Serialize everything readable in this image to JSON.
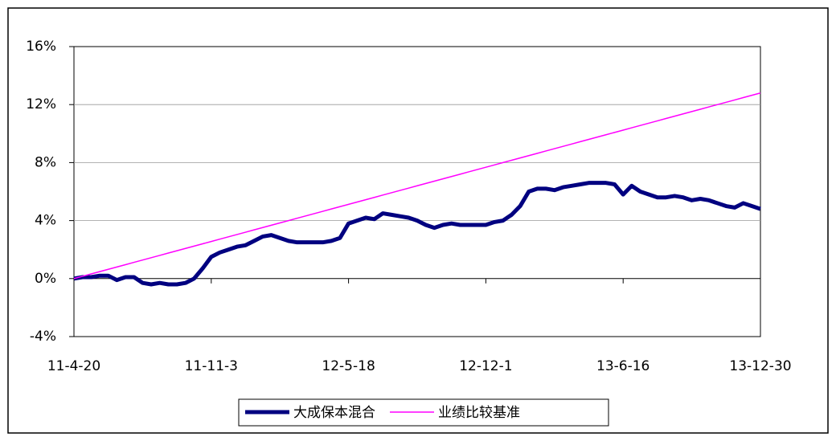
{
  "chart_data": {
    "type": "line",
    "categories": [
      "11-4-20",
      null,
      null,
      null,
      null,
      null,
      null,
      null,
      null,
      null,
      null,
      null,
      null,
      null,
      null,
      null,
      "11-11-3",
      null,
      null,
      null,
      null,
      null,
      null,
      null,
      null,
      null,
      null,
      null,
      null,
      null,
      null,
      null,
      "12-5-18",
      null,
      null,
      null,
      null,
      null,
      null,
      null,
      null,
      null,
      null,
      null,
      null,
      null,
      null,
      null,
      "12-12-1",
      null,
      null,
      null,
      null,
      null,
      null,
      null,
      null,
      null,
      null,
      null,
      null,
      null,
      null,
      null,
      "13-6-16",
      null,
      null,
      null,
      null,
      null,
      null,
      null,
      null,
      null,
      null,
      null,
      null,
      null,
      null,
      null,
      "13-12-30"
    ],
    "series": [
      {
        "name": "大成保本混合",
        "color": "#000080",
        "values": [
          0,
          0.1,
          0.1,
          0.2,
          0.2,
          -0.1,
          0.1,
          0.1,
          -0.3,
          -0.4,
          -0.3,
          -0.4,
          -0.4,
          -0.3,
          0.0,
          0.7,
          1.5,
          1.8,
          2.0,
          2.2,
          2.3,
          2.6,
          2.9,
          3.0,
          2.8,
          2.6,
          2.5,
          2.5,
          2.5,
          2.5,
          2.6,
          2.8,
          3.8,
          4.0,
          4.2,
          4.1,
          4.5,
          4.4,
          4.3,
          4.2,
          4.0,
          3.7,
          3.5,
          3.7,
          3.8,
          3.7,
          3.7,
          3.7,
          3.7,
          3.9,
          4.0,
          4.4,
          5.0,
          6.0,
          6.2,
          6.2,
          6.1,
          6.3,
          6.4,
          6.5,
          6.6,
          6.6,
          6.6,
          6.5,
          5.8,
          6.4,
          6.0,
          5.8,
          5.6,
          5.6,
          5.7,
          5.6,
          5.4,
          5.5,
          5.4,
          5.2,
          5.0,
          4.9,
          5.2,
          5.0,
          4.8
        ]
      },
      {
        "name": "业绩比较基准",
        "color": "#ff00ff",
        "values": [
          0,
          0.16,
          0.32,
          0.48,
          0.64,
          0.8,
          0.96,
          1.12,
          1.28,
          1.44,
          1.6,
          1.76,
          1.92,
          2.08,
          2.24,
          2.4,
          2.56,
          2.72,
          2.88,
          3.04,
          3.2,
          3.36,
          3.52,
          3.68,
          3.84,
          4.0,
          4.16,
          4.32,
          4.48,
          4.64,
          4.8,
          4.96,
          5.12,
          5.28,
          5.44,
          5.6,
          5.76,
          5.92,
          6.08,
          6.24,
          6.4,
          6.56,
          6.72,
          6.88,
          7.04,
          7.2,
          7.36,
          7.52,
          7.68,
          7.84,
          8.0,
          8.16,
          8.32,
          8.48,
          8.64,
          8.8,
          8.96,
          9.12,
          9.28,
          9.44,
          9.6,
          9.76,
          9.92,
          10.08,
          10.24,
          10.4,
          10.56,
          10.72,
          10.88,
          11.04,
          11.2,
          11.36,
          11.52,
          11.68,
          11.84,
          12.0,
          12.16,
          12.32,
          12.48,
          12.64,
          12.8
        ]
      }
    ],
    "ylim": [
      -4,
      16
    ],
    "yticks": [
      {
        "value": -4,
        "label": "-4%"
      },
      {
        "value": 0,
        "label": "0%"
      },
      {
        "value": 4,
        "label": "4%"
      },
      {
        "value": 8,
        "label": "8%"
      },
      {
        "value": 12,
        "label": "12%"
      },
      {
        "value": 16,
        "label": "16%"
      }
    ],
    "grid": true,
    "legend": "bottom"
  }
}
